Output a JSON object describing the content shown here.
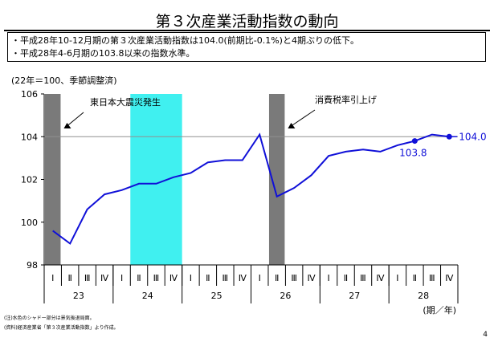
{
  "header": {
    "title": "第３次産業活動指数の動向",
    "bullets": [
      "・平成28年10-12月期の第３次産業活動指数は104.0(前期比-0.1%)と4期ぶりの低下。",
      "・平成28年4-6月期の103.8以来の指数水準。"
    ]
  },
  "unit_note": "(22年＝100、季節調整済)",
  "notes": [
    "(注)水色のシャドー部分は景気後退局面。",
    "(資料)経済産業省「第３次産業活動指数」より作成。"
  ],
  "page_number": "4",
  "colors": {
    "line": "#1010d8",
    "recession_shade": "#40f0f0",
    "event_bar": "#7a7a7a",
    "reference_line": "#909090"
  },
  "chart_data": {
    "type": "line",
    "xlabel": "(期／年)",
    "ylabel": "",
    "ylim": [
      98,
      106
    ],
    "y_ticks": [
      "98",
      "100",
      "102",
      "104",
      "106"
    ],
    "quarters": [
      "Ⅰ",
      "Ⅱ",
      "Ⅲ",
      "Ⅳ",
      "Ⅰ",
      "Ⅱ",
      "Ⅲ",
      "Ⅳ",
      "Ⅰ",
      "Ⅱ",
      "Ⅲ",
      "Ⅳ",
      "Ⅰ",
      "Ⅱ",
      "Ⅲ",
      "Ⅳ",
      "Ⅰ",
      "Ⅱ",
      "Ⅲ",
      "Ⅳ",
      "Ⅰ",
      "Ⅱ",
      "Ⅲ",
      "Ⅳ"
    ],
    "years": [
      "23",
      "24",
      "25",
      "26",
      "27",
      "28"
    ],
    "series": [
      {
        "name": "",
        "values": [
          99.6,
          99.0,
          100.6,
          101.3,
          101.5,
          101.8,
          101.8,
          102.1,
          102.3,
          102.8,
          102.9,
          102.9,
          104.1,
          101.2,
          101.6,
          102.2,
          103.1,
          103.3,
          103.4,
          103.3,
          103.6,
          103.8,
          104.1,
          104.0
        ]
      }
    ],
    "reference_line": 104.0,
    "highlight_points": [
      {
        "index": 21,
        "label": "103.8"
      },
      {
        "index": 23,
        "label": "104.0"
      }
    ],
    "event_bars": [
      {
        "quarter_index": 0,
        "label": "東日本大震災発生"
      },
      {
        "quarter_index": 13,
        "label": "消費税率引上げ"
      }
    ],
    "recession_shade": {
      "from_quarter": 5,
      "to_quarter": 7
    }
  }
}
